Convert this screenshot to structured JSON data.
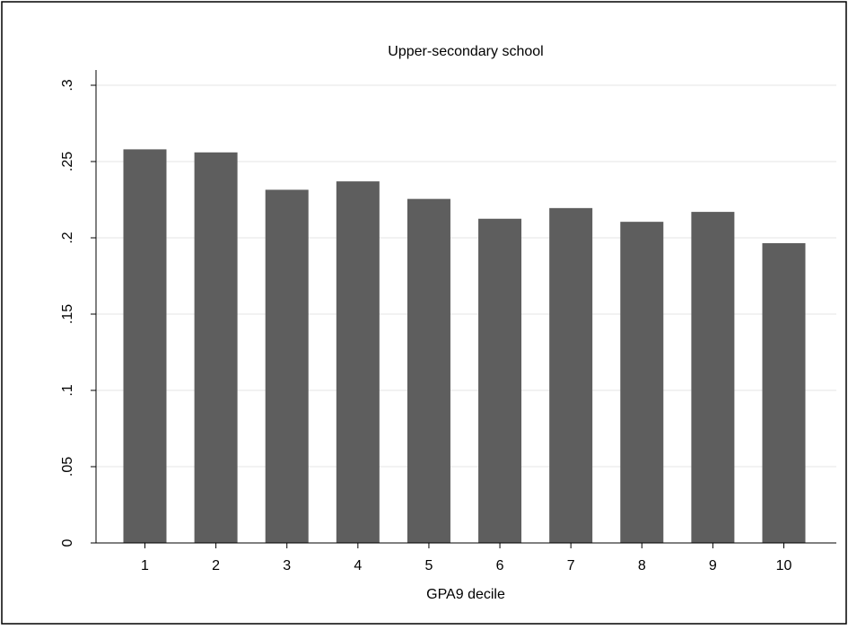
{
  "chart_data": {
    "type": "bar",
    "title": "Upper-secondary school",
    "xlabel": "GPA9 decile",
    "ylabel": "",
    "categories": [
      "1",
      "2",
      "3",
      "4",
      "5",
      "6",
      "7",
      "8",
      "9",
      "10"
    ],
    "values": [
      0.258,
      0.256,
      0.2315,
      0.237,
      0.2255,
      0.2125,
      0.2195,
      0.2105,
      0.217,
      0.1965
    ],
    "ylim": [
      0,
      0.31
    ],
    "yticks": [
      0,
      0.05,
      0.1,
      0.15,
      0.2,
      0.25,
      0.3
    ],
    "ytick_labels": [
      "0",
      ".05",
      ".1",
      ".15",
      ".2",
      ".25",
      ".3"
    ],
    "grid": true,
    "bar_color": "#5e5e5e",
    "grid_color": "#e6e6e6"
  }
}
